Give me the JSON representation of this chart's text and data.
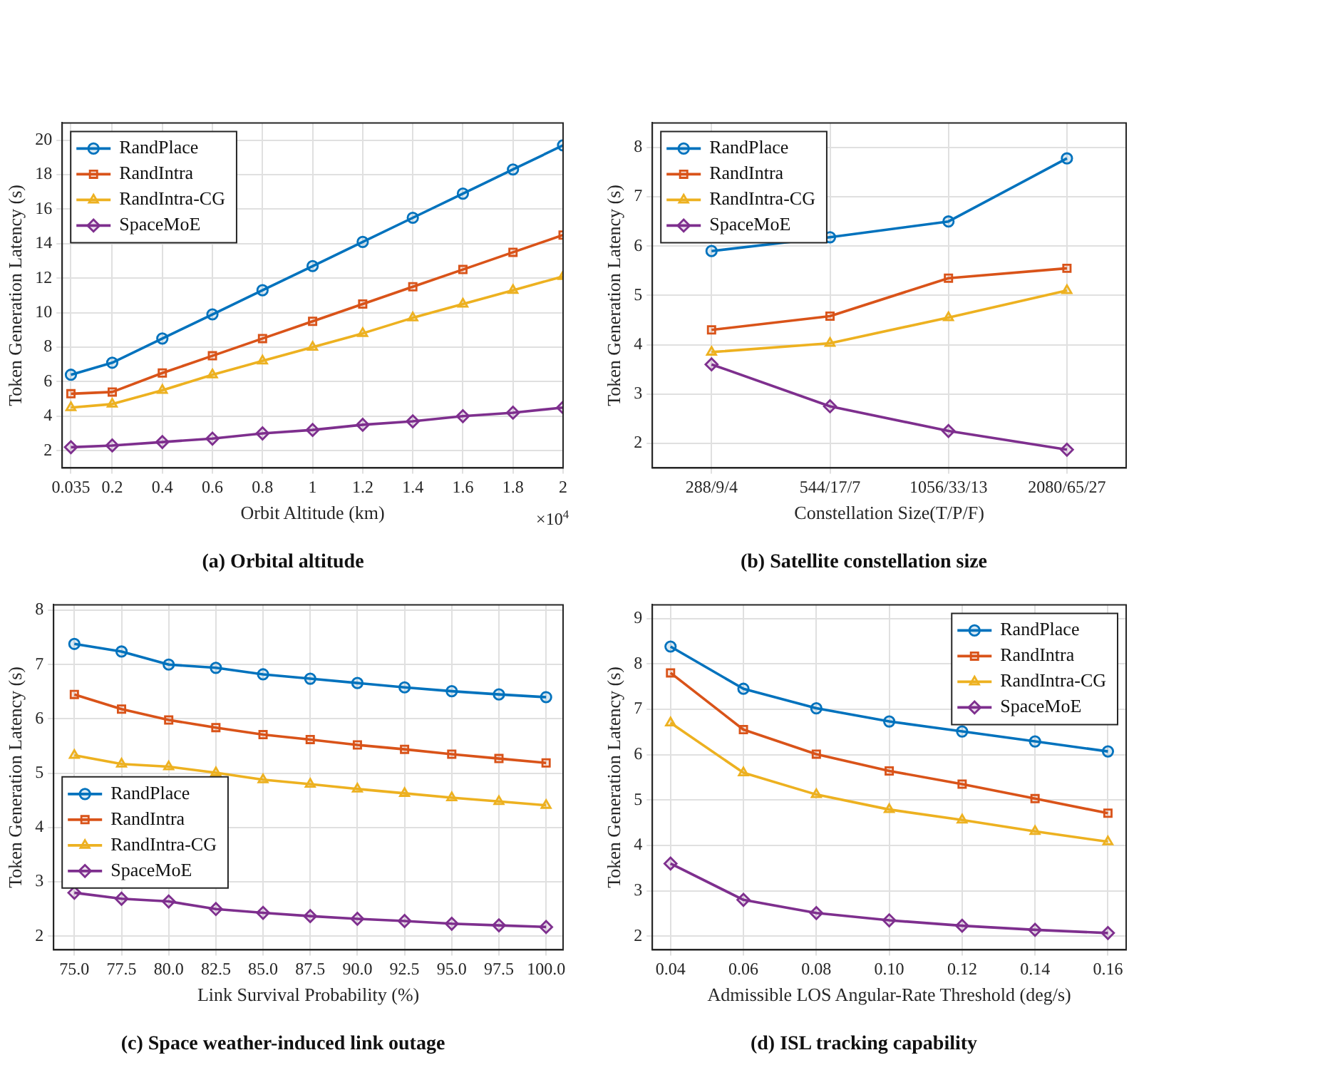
{
  "chart_data": [
    {
      "type": "line",
      "title": "(a) Orbital altitude",
      "xlabel": "Orbit Altitude (km)",
      "ylabel": "Token Generation Latency (s)",
      "annotations": [
        "×10$^{4}$"
      ],
      "x": [
        0.035,
        0.2,
        0.4,
        0.6,
        0.8,
        1,
        1.2,
        1.4,
        1.6,
        1.8,
        2
      ],
      "xlim": [
        0,
        2
      ],
      "xticks": [
        0.035,
        0.2,
        0.4,
        0.6,
        0.8,
        1,
        1.2,
        1.4,
        1.6,
        1.8,
        2
      ],
      "ylim": [
        1,
        21
      ],
      "yticks": [
        2,
        4,
        6,
        8,
        10,
        12,
        14,
        16,
        18,
        20
      ],
      "grid": true,
      "legend": "top left",
      "series": [
        {
          "name": "RandPlace",
          "color": "#0072bd",
          "marker": "circle",
          "values": [
            6.4,
            7.1,
            8.5,
            9.9,
            11.3,
            12.7,
            14.1,
            15.5,
            16.9,
            18.3,
            19.7
          ]
        },
        {
          "name": "RandIntra",
          "color": "#d95319",
          "marker": "square",
          "values": [
            5.3,
            5.4,
            6.5,
            7.5,
            8.5,
            9.5,
            10.5,
            11.5,
            12.5,
            13.5,
            14.5
          ]
        },
        {
          "name": "RandIntra-CG",
          "color": "#edb120",
          "marker": "triangle",
          "values": [
            4.5,
            4.7,
            5.5,
            6.4,
            7.2,
            8.0,
            8.8,
            9.7,
            10.5,
            11.3,
            12.1
          ]
        },
        {
          "name": "SpaceMoE",
          "color": "#7e2f8e",
          "marker": "diamond",
          "values": [
            2.2,
            2.3,
            2.5,
            2.7,
            3.0,
            3.2,
            3.5,
            3.7,
            4.0,
            4.2,
            4.5
          ]
        }
      ]
    },
    {
      "type": "line",
      "title": "(b) Satellite constellation size",
      "xlabel": "Constellation Size(T/P/F)",
      "ylabel": "Token Generation Latency (s)",
      "categories": [
        "288/9/4",
        "544/17/7",
        "1056/33/13",
        "2080/65/27"
      ],
      "ylim": [
        1.5,
        8.5
      ],
      "yticks": [
        2,
        3,
        4,
        5,
        6,
        7,
        8
      ],
      "grid": true,
      "legend": "top left",
      "series": [
        {
          "name": "RandPlace",
          "color": "#0072bd",
          "marker": "circle",
          "values": [
            5.9,
            6.18,
            6.5,
            7.78
          ]
        },
        {
          "name": "RandIntra",
          "color": "#d95319",
          "marker": "square",
          "values": [
            4.3,
            4.58,
            5.35,
            5.55
          ]
        },
        {
          "name": "RandIntra-CG",
          "color": "#edb120",
          "marker": "triangle",
          "values": [
            3.85,
            4.03,
            4.55,
            5.1
          ]
        },
        {
          "name": "SpaceMoE",
          "color": "#7e2f8e",
          "marker": "diamond",
          "values": [
            3.6,
            2.75,
            2.25,
            1.87
          ]
        }
      ]
    },
    {
      "type": "line",
      "title": "(c) Space weather-induced link outage",
      "xlabel": "Link Survival Probability (%)",
      "ylabel": "Token Generation Latency (s)",
      "x": [
        75,
        77.5,
        80,
        82.5,
        85,
        87.5,
        90,
        92.5,
        95,
        97.5,
        100
      ],
      "xlim": [
        73.9,
        100.9
      ],
      "xticks": [
        {
          "value": 75,
          "label": "75.0"
        },
        77.5,
        {
          "value": 80,
          "label": "80.0"
        },
        82.5,
        {
          "value": 85,
          "label": "85.0"
        },
        87.5,
        {
          "value": 90,
          "label": "90.0"
        },
        92.5,
        {
          "value": 95,
          "label": "95.0"
        },
        97.5,
        {
          "value": 100,
          "label": "100.0"
        }
      ],
      "ylim": [
        1.75,
        8.1
      ],
      "yticks": [
        2,
        3,
        4,
        5,
        6,
        7,
        8
      ],
      "grid": true,
      "legend": "left",
      "series": [
        {
          "name": "RandPlace",
          "color": "#0072bd",
          "marker": "circle",
          "values": [
            7.38,
            7.24,
            7.0,
            6.94,
            6.82,
            6.74,
            6.66,
            6.58,
            6.51,
            6.45,
            6.4
          ]
        },
        {
          "name": "RandIntra",
          "color": "#d95319",
          "marker": "square",
          "values": [
            6.45,
            6.18,
            5.98,
            5.84,
            5.71,
            5.62,
            5.52,
            5.44,
            5.35,
            5.27,
            5.19
          ]
        },
        {
          "name": "RandIntra-CG",
          "color": "#edb120",
          "marker": "triangle",
          "values": [
            5.33,
            5.17,
            5.12,
            5.01,
            4.88,
            4.8,
            4.71,
            4.63,
            4.55,
            4.48,
            4.41
          ]
        },
        {
          "name": "SpaceMoE",
          "color": "#7e2f8e",
          "marker": "diamond",
          "values": [
            2.8,
            2.69,
            2.64,
            2.5,
            2.43,
            2.37,
            2.32,
            2.28,
            2.23,
            2.2,
            2.17
          ]
        }
      ]
    },
    {
      "type": "line",
      "title": "(d) ISL tracking capability",
      "xlabel": "Admissible LOS Angular-Rate Threshold (deg/s)",
      "ylabel": "Token Generation Latency (s)",
      "x": [
        0.04,
        0.06,
        0.08,
        0.1,
        0.12,
        0.14,
        0.16
      ],
      "xlim": [
        0.035,
        0.165
      ],
      "xticks": [
        0.04,
        0.06,
        0.08,
        {
          "value": 0.1,
          "label": "0.10"
        },
        0.12,
        0.14,
        0.16
      ],
      "ylim": [
        1.7,
        9.3
      ],
      "yticks": [
        2,
        3,
        4,
        5,
        6,
        7,
        8,
        9
      ],
      "grid": true,
      "legend": "top right",
      "series": [
        {
          "name": "RandPlace",
          "color": "#0072bd",
          "marker": "circle",
          "values": [
            8.38,
            7.45,
            7.02,
            6.73,
            6.51,
            6.29,
            6.07
          ]
        },
        {
          "name": "RandIntra",
          "color": "#d95319",
          "marker": "square",
          "values": [
            7.8,
            6.55,
            6.01,
            5.64,
            5.35,
            5.03,
            4.71
          ]
        },
        {
          "name": "RandIntra-CG",
          "color": "#edb120",
          "marker": "triangle",
          "values": [
            6.7,
            5.6,
            5.12,
            4.79,
            4.56,
            4.31,
            4.08
          ]
        },
        {
          "name": "SpaceMoE",
          "color": "#7e2f8e",
          "marker": "diamond",
          "values": [
            3.6,
            2.8,
            2.51,
            2.35,
            2.23,
            2.14,
            2.07
          ]
        }
      ]
    }
  ]
}
